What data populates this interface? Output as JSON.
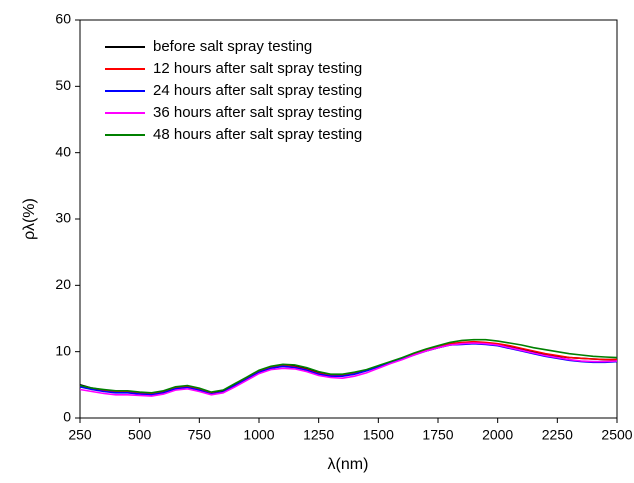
{
  "chart_data": {
    "type": "line",
    "x_label": "λ(nm)",
    "y_label": "ρλ(%)",
    "x": [
      250,
      300,
      350,
      400,
      450,
      500,
      550,
      600,
      650,
      700,
      750,
      800,
      850,
      900,
      950,
      1000,
      1050,
      1100,
      1150,
      1200,
      1250,
      1300,
      1350,
      1400,
      1450,
      1500,
      1550,
      1600,
      1650,
      1700,
      1750,
      1800,
      1850,
      1900,
      1950,
      2000,
      2050,
      2100,
      2150,
      2200,
      2250,
      2300,
      2350,
      2400,
      2450,
      2500
    ],
    "series": [
      {
        "name": "before salt spray testing",
        "color": "#000000",
        "values": [
          5.0,
          4.5,
          4.2,
          4.0,
          4.0,
          3.8,
          3.7,
          4.0,
          4.6,
          4.8,
          4.4,
          3.8,
          4.0,
          5.0,
          6.0,
          7.0,
          7.6,
          7.9,
          7.8,
          7.4,
          6.8,
          6.5,
          6.5,
          6.8,
          7.2,
          7.8,
          8.4,
          9.0,
          9.6,
          10.1,
          10.6,
          11.0,
          11.2,
          11.3,
          11.3,
          11.1,
          10.8,
          10.4,
          10.0,
          9.6,
          9.3,
          9.1,
          9.0,
          8.9,
          8.8,
          8.8
        ]
      },
      {
        "name": "12 hours after salt spray testing",
        "color": "#ff0000",
        "values": [
          4.8,
          4.4,
          4.1,
          3.9,
          3.9,
          3.7,
          3.6,
          3.9,
          4.5,
          4.7,
          4.3,
          3.7,
          3.9,
          4.9,
          6.0,
          7.0,
          7.6,
          7.9,
          7.7,
          7.3,
          6.7,
          6.4,
          6.4,
          6.7,
          7.2,
          7.8,
          8.4,
          9.0,
          9.7,
          10.3,
          10.8,
          11.2,
          11.4,
          11.5,
          11.4,
          11.2,
          10.9,
          10.5,
          10.1,
          9.7,
          9.4,
          9.1,
          9.0,
          8.9,
          8.8,
          8.8
        ]
      },
      {
        "name": "24 hours after salt spray testing",
        "color": "#0000ff",
        "values": [
          4.7,
          4.3,
          4.0,
          3.8,
          3.8,
          3.6,
          3.5,
          3.8,
          4.4,
          4.6,
          4.2,
          3.6,
          3.9,
          4.9,
          5.9,
          6.9,
          7.5,
          7.8,
          7.6,
          7.2,
          6.6,
          6.3,
          6.3,
          6.6,
          7.1,
          7.7,
          8.3,
          8.9,
          9.5,
          10.1,
          10.6,
          11.0,
          11.1,
          11.2,
          11.1,
          10.9,
          10.5,
          10.1,
          9.7,
          9.3,
          9.0,
          8.7,
          8.5,
          8.4,
          8.4,
          8.5
        ]
      },
      {
        "name": "36 hours after salt spray testing",
        "color": "#ff00ff",
        "values": [
          4.3,
          4.0,
          3.7,
          3.5,
          3.5,
          3.4,
          3.3,
          3.6,
          4.2,
          4.4,
          4.0,
          3.5,
          3.8,
          4.7,
          5.7,
          6.7,
          7.3,
          7.5,
          7.4,
          7.0,
          6.4,
          6.1,
          6.0,
          6.3,
          6.8,
          7.5,
          8.2,
          8.8,
          9.5,
          10.1,
          10.6,
          11.0,
          11.2,
          11.3,
          11.2,
          11.0,
          10.6,
          10.2,
          9.8,
          9.4,
          9.1,
          8.8,
          8.6,
          8.5,
          8.5,
          8.6
        ]
      },
      {
        "name": "48 hours after salt spray testing",
        "color": "#008000",
        "values": [
          4.9,
          4.5,
          4.3,
          4.1,
          4.1,
          3.9,
          3.8,
          4.1,
          4.7,
          4.9,
          4.5,
          3.9,
          4.2,
          5.2,
          6.2,
          7.2,
          7.8,
          8.1,
          8.0,
          7.6,
          7.0,
          6.6,
          6.6,
          6.9,
          7.3,
          7.9,
          8.5,
          9.1,
          9.8,
          10.4,
          10.9,
          11.4,
          11.7,
          11.8,
          11.8,
          11.6,
          11.3,
          11.0,
          10.6,
          10.3,
          10.0,
          9.7,
          9.5,
          9.3,
          9.2,
          9.1
        ]
      }
    ],
    "xlim": [
      250,
      2500
    ],
    "xticks": [
      250,
      500,
      750,
      1000,
      1250,
      1500,
      1750,
      2000,
      2250,
      2500
    ],
    "ylim": [
      0,
      60
    ],
    "yticks": [
      0,
      10,
      20,
      30,
      40,
      50,
      60
    ],
    "legend": "upper left",
    "grid": false
  }
}
